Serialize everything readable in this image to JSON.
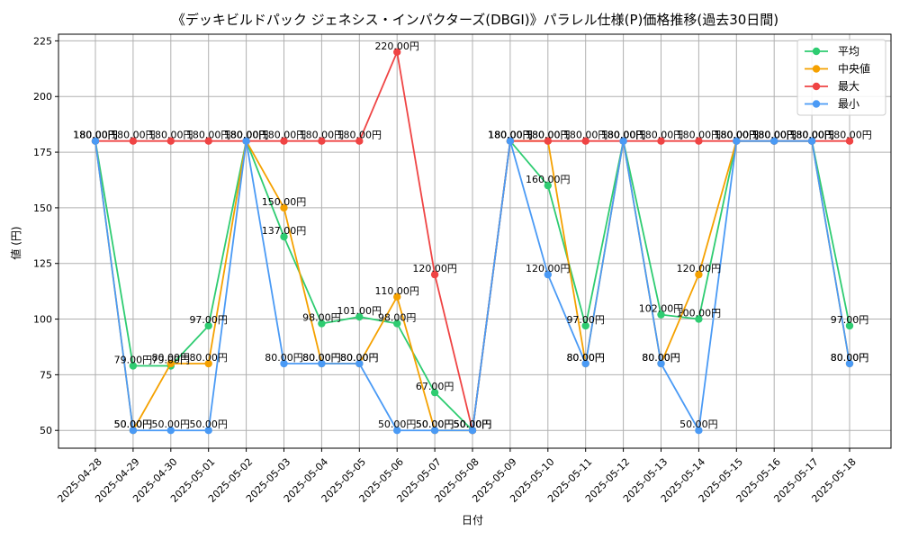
{
  "chart_data": {
    "type": "line",
    "title": "《デッキビルドパック ジェネシス・インパクターズ(DBGI)》パラレル仕様(P)価格推移(過去30日間)",
    "xlabel": "日付",
    "ylabel": "値 (円)",
    "ylim": [
      42,
      228
    ],
    "yticks": [
      50,
      75,
      100,
      125,
      150,
      175,
      200,
      225
    ],
    "grid": true,
    "legend_position": "top-right",
    "label_suffix": "円",
    "categories": [
      "2025-04-28",
      "2025-04-29",
      "2025-04-30",
      "2025-05-01",
      "2025-05-02",
      "2025-05-03",
      "2025-05-04",
      "2025-05-05",
      "2025-05-06",
      "2025-05-07",
      "2025-05-08",
      "2025-05-09",
      "2025-05-10",
      "2025-05-11",
      "2025-05-12",
      "2025-05-13",
      "2025-05-14",
      "2025-05-15",
      "2025-05-16",
      "2025-05-17",
      "2025-05-18"
    ],
    "series": [
      {
        "name": "平均",
        "color": "#2ecc71",
        "values": [
          180,
          79,
          79,
          97,
          180,
          137,
          98,
          101,
          98,
          67,
          50,
          180,
          160,
          97,
          180,
          102,
          100,
          180,
          180,
          180,
          97
        ]
      },
      {
        "name": "中央値",
        "color": "#f5a100",
        "values": [
          180,
          50,
          80,
          80,
          180,
          150,
          80,
          80,
          110,
          50,
          50,
          180,
          180,
          80,
          180,
          80,
          120,
          180,
          180,
          180,
          80
        ]
      },
      {
        "name": "最大",
        "color": "#ef4444",
        "values": [
          180,
          180,
          180,
          180,
          180,
          180,
          180,
          180,
          220,
          120,
          50,
          180,
          180,
          180,
          180,
          180,
          180,
          180,
          180,
          180,
          180
        ]
      },
      {
        "name": "最小",
        "color": "#4a9af5",
        "values": [
          180,
          50,
          50,
          50,
          180,
          80,
          80,
          80,
          50,
          50,
          50,
          180,
          120,
          80,
          180,
          80,
          50,
          180,
          180,
          180,
          80
        ]
      }
    ]
  }
}
